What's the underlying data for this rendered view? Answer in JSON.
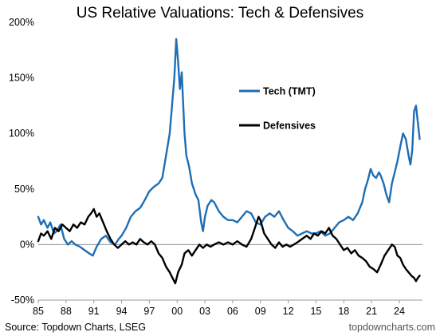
{
  "chart_data": {
    "type": "line",
    "title": "US Relative Valuations: Tech & Defensives",
    "source": "Source: Topdown Charts, LSEG",
    "watermark": "topdowncharts.com",
    "ylim": [
      -50,
      200
    ],
    "yticks": [
      -50,
      0,
      50,
      100,
      150,
      200
    ],
    "ytick_labels": [
      "-50%",
      "0%",
      "50%",
      "100%",
      "150%",
      "200%"
    ],
    "xlim": [
      1985,
      2026.5
    ],
    "xticks": [
      1985,
      1988,
      1991,
      1994,
      1997,
      2000,
      2003,
      2006,
      2009,
      2012,
      2015,
      2018,
      2021,
      2024
    ],
    "xtick_labels": [
      "85",
      "88",
      "91",
      "94",
      "97",
      "00",
      "03",
      "06",
      "09",
      "12",
      "15",
      "18",
      "21",
      "24"
    ],
    "zero_line": true,
    "grid": false,
    "legend_position": "upper-center",
    "series": [
      {
        "name": "Tech (TMT)",
        "color": "#1f6eb5",
        "points": [
          [
            1985.0,
            25
          ],
          [
            1985.3,
            18
          ],
          [
            1985.6,
            22
          ],
          [
            1986.0,
            15
          ],
          [
            1986.3,
            20
          ],
          [
            1986.7,
            10
          ],
          [
            1987.0,
            12
          ],
          [
            1987.4,
            18
          ],
          [
            1987.8,
            5
          ],
          [
            1988.2,
            0
          ],
          [
            1988.6,
            3
          ],
          [
            1989.0,
            0
          ],
          [
            1989.5,
            -2
          ],
          [
            1990.0,
            -5
          ],
          [
            1990.5,
            -8
          ],
          [
            1990.9,
            -10
          ],
          [
            1991.3,
            -2
          ],
          [
            1991.8,
            5
          ],
          [
            1992.3,
            8
          ],
          [
            1992.8,
            2
          ],
          [
            1993.3,
            0
          ],
          [
            1993.7,
            5
          ],
          [
            1994.0,
            8
          ],
          [
            1994.5,
            15
          ],
          [
            1995.0,
            25
          ],
          [
            1995.5,
            30
          ],
          [
            1996.0,
            33
          ],
          [
            1996.5,
            40
          ],
          [
            1997.0,
            48
          ],
          [
            1997.5,
            52
          ],
          [
            1998.0,
            55
          ],
          [
            1998.4,
            60
          ],
          [
            1998.8,
            80
          ],
          [
            1999.2,
            100
          ],
          [
            1999.5,
            130
          ],
          [
            1999.7,
            150
          ],
          [
            1999.9,
            185
          ],
          [
            2000.1,
            165
          ],
          [
            2000.3,
            140
          ],
          [
            2000.5,
            155
          ],
          [
            2000.8,
            100
          ],
          [
            2001.0,
            80
          ],
          [
            2001.3,
            70
          ],
          [
            2001.6,
            55
          ],
          [
            2002.0,
            45
          ],
          [
            2002.3,
            40
          ],
          [
            2002.6,
            20
          ],
          [
            2002.8,
            12
          ],
          [
            2003.0,
            25
          ],
          [
            2003.3,
            35
          ],
          [
            2003.7,
            40
          ],
          [
            2004.0,
            38
          ],
          [
            2004.5,
            30
          ],
          [
            2005.0,
            25
          ],
          [
            2005.5,
            22
          ],
          [
            2006.0,
            22
          ],
          [
            2006.5,
            20
          ],
          [
            2007.0,
            25
          ],
          [
            2007.5,
            30
          ],
          [
            2008.0,
            28
          ],
          [
            2008.5,
            20
          ],
          [
            2009.0,
            18
          ],
          [
            2009.5,
            25
          ],
          [
            2010.0,
            28
          ],
          [
            2010.5,
            25
          ],
          [
            2011.0,
            30
          ],
          [
            2011.5,
            22
          ],
          [
            2012.0,
            15
          ],
          [
            2012.5,
            12
          ],
          [
            2013.0,
            8
          ],
          [
            2013.5,
            10
          ],
          [
            2014.0,
            12
          ],
          [
            2014.5,
            10
          ],
          [
            2015.0,
            10
          ],
          [
            2015.5,
            12
          ],
          [
            2016.0,
            8
          ],
          [
            2016.5,
            10
          ],
          [
            2017.0,
            15
          ],
          [
            2017.5,
            20
          ],
          [
            2018.0,
            22
          ],
          [
            2018.5,
            25
          ],
          [
            2019.0,
            22
          ],
          [
            2019.5,
            28
          ],
          [
            2020.0,
            38
          ],
          [
            2020.3,
            50
          ],
          [
            2020.6,
            58
          ],
          [
            2020.9,
            68
          ],
          [
            2021.2,
            62
          ],
          [
            2021.5,
            60
          ],
          [
            2021.8,
            65
          ],
          [
            2022.0,
            62
          ],
          [
            2022.3,
            55
          ],
          [
            2022.6,
            45
          ],
          [
            2022.9,
            38
          ],
          [
            2023.2,
            55
          ],
          [
            2023.5,
            65
          ],
          [
            2023.8,
            75
          ],
          [
            2024.1,
            88
          ],
          [
            2024.4,
            100
          ],
          [
            2024.7,
            95
          ],
          [
            2025.0,
            80
          ],
          [
            2025.2,
            72
          ],
          [
            2025.4,
            85
          ],
          [
            2025.6,
            120
          ],
          [
            2025.8,
            125
          ],
          [
            2026.0,
            110
          ],
          [
            2026.2,
            95
          ]
        ]
      },
      {
        "name": "Defensives",
        "color": "#000000",
        "points": [
          [
            1985.0,
            3
          ],
          [
            1985.3,
            10
          ],
          [
            1985.6,
            8
          ],
          [
            1986.0,
            12
          ],
          [
            1986.4,
            5
          ],
          [
            1986.8,
            15
          ],
          [
            1987.2,
            12
          ],
          [
            1987.6,
            18
          ],
          [
            1988.0,
            15
          ],
          [
            1988.4,
            12
          ],
          [
            1988.8,
            18
          ],
          [
            1989.2,
            15
          ],
          [
            1989.6,
            20
          ],
          [
            1990.0,
            18
          ],
          [
            1990.4,
            25
          ],
          [
            1990.7,
            28
          ],
          [
            1991.0,
            32
          ],
          [
            1991.3,
            25
          ],
          [
            1991.6,
            28
          ],
          [
            1992.0,
            20
          ],
          [
            1992.4,
            12
          ],
          [
            1992.8,
            5
          ],
          [
            1993.2,
            0
          ],
          [
            1993.6,
            -3
          ],
          [
            1994.0,
            0
          ],
          [
            1994.4,
            3
          ],
          [
            1994.8,
            0
          ],
          [
            1995.2,
            2
          ],
          [
            1995.6,
            0
          ],
          [
            1996.0,
            5
          ],
          [
            1996.4,
            2
          ],
          [
            1996.8,
            0
          ],
          [
            1997.2,
            3
          ],
          [
            1997.6,
            0
          ],
          [
            1998.0,
            -8
          ],
          [
            1998.4,
            -12
          ],
          [
            1998.8,
            -20
          ],
          [
            1999.2,
            -25
          ],
          [
            1999.5,
            -30
          ],
          [
            1999.8,
            -35
          ],
          [
            2000.1,
            -25
          ],
          [
            2000.5,
            -18
          ],
          [
            2000.8,
            -8
          ],
          [
            2001.2,
            -5
          ],
          [
            2001.6,
            -10
          ],
          [
            2002.0,
            -5
          ],
          [
            2002.4,
            0
          ],
          [
            2002.8,
            -3
          ],
          [
            2003.2,
            0
          ],
          [
            2003.6,
            -2
          ],
          [
            2004.0,
            0
          ],
          [
            2004.5,
            2
          ],
          [
            2005.0,
            0
          ],
          [
            2005.5,
            2
          ],
          [
            2006.0,
            0
          ],
          [
            2006.5,
            3
          ],
          [
            2007.0,
            0
          ],
          [
            2007.5,
            -2
          ],
          [
            2008.0,
            5
          ],
          [
            2008.4,
            15
          ],
          [
            2008.8,
            25
          ],
          [
            2009.0,
            22
          ],
          [
            2009.4,
            10
          ],
          [
            2009.8,
            5
          ],
          [
            2010.2,
            0
          ],
          [
            2010.6,
            -3
          ],
          [
            2011.0,
            2
          ],
          [
            2011.4,
            -2
          ],
          [
            2011.8,
            0
          ],
          [
            2012.2,
            -2
          ],
          [
            2012.6,
            0
          ],
          [
            2013.0,
            2
          ],
          [
            2013.5,
            5
          ],
          [
            2014.0,
            8
          ],
          [
            2014.4,
            5
          ],
          [
            2014.8,
            10
          ],
          [
            2015.2,
            8
          ],
          [
            2015.6,
            12
          ],
          [
            2016.0,
            10
          ],
          [
            2016.4,
            15
          ],
          [
            2016.8,
            8
          ],
          [
            2017.2,
            5
          ],
          [
            2017.6,
            0
          ],
          [
            2018.0,
            -5
          ],
          [
            2018.4,
            -3
          ],
          [
            2018.8,
            -8
          ],
          [
            2019.2,
            -5
          ],
          [
            2019.6,
            -10
          ],
          [
            2020.0,
            -12
          ],
          [
            2020.4,
            -15
          ],
          [
            2020.8,
            -20
          ],
          [
            2021.2,
            -22
          ],
          [
            2021.6,
            -25
          ],
          [
            2022.0,
            -18
          ],
          [
            2022.4,
            -10
          ],
          [
            2022.8,
            -5
          ],
          [
            2023.2,
            0
          ],
          [
            2023.5,
            -2
          ],
          [
            2023.8,
            -10
          ],
          [
            2024.1,
            -12
          ],
          [
            2024.4,
            -18
          ],
          [
            2024.7,
            -22
          ],
          [
            2025.0,
            -25
          ],
          [
            2025.3,
            -28
          ],
          [
            2025.6,
            -30
          ],
          [
            2025.8,
            -33
          ],
          [
            2026.0,
            -30
          ],
          [
            2026.2,
            -28
          ]
        ]
      }
    ]
  }
}
